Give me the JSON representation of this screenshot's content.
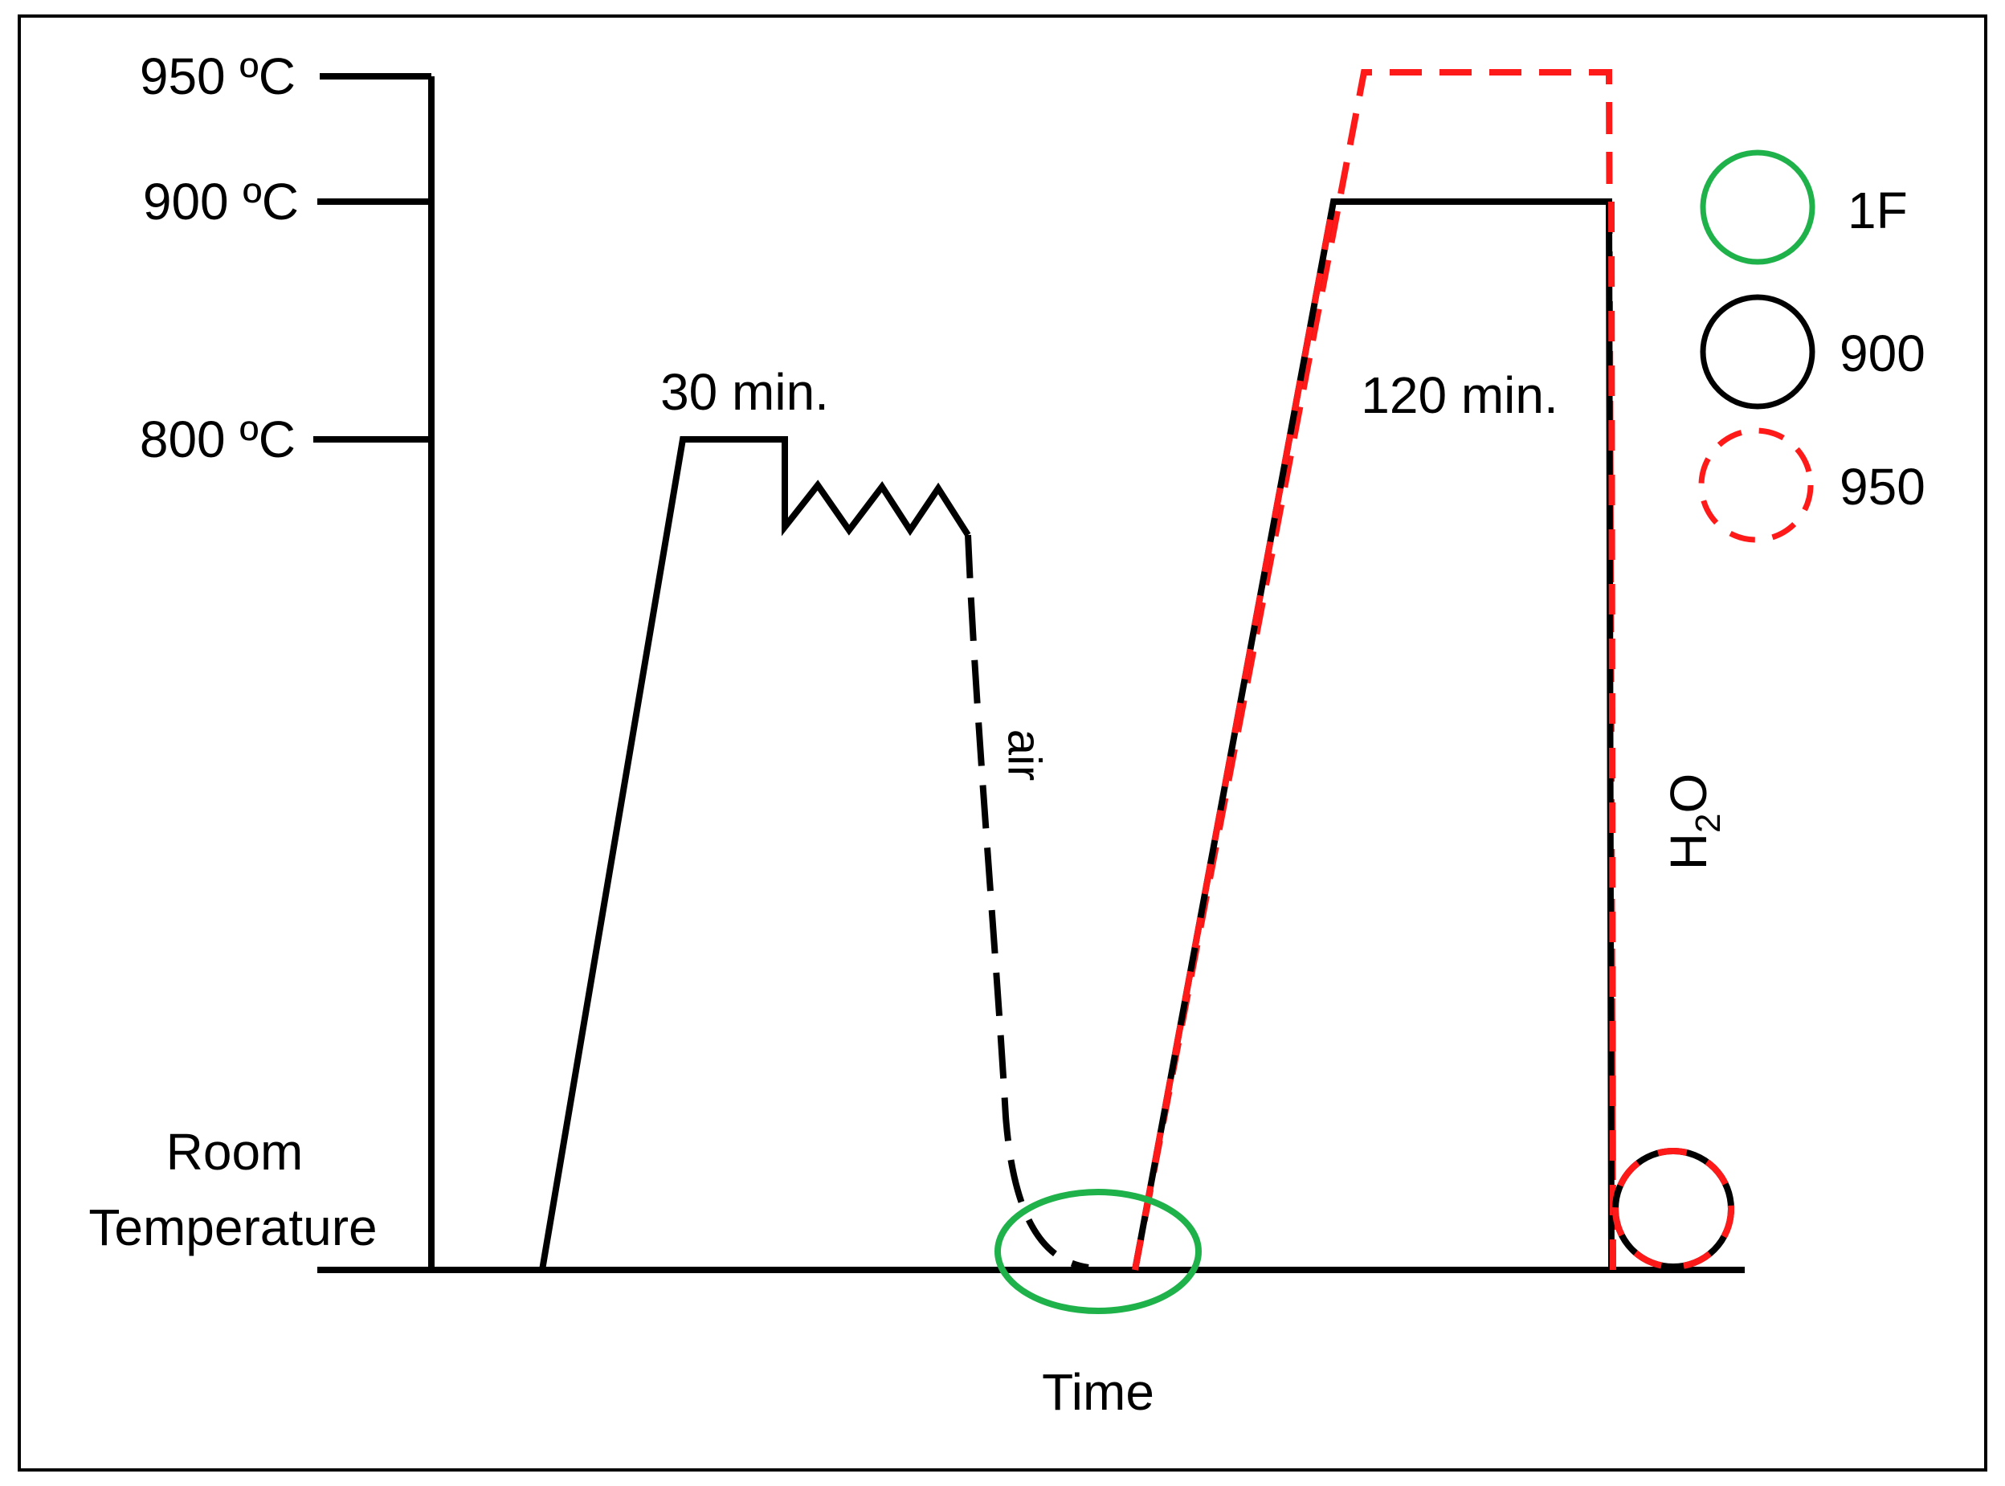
{
  "colors": {
    "black": "#000000",
    "red": "#ff1a1a",
    "green": "#1fb24a",
    "background": "#ffffff"
  },
  "y_axis": {
    "ticks": [
      "950 ºC",
      "900 ºC",
      "800 ºC"
    ],
    "room_temperature": [
      "Room",
      "Temperature"
    ]
  },
  "x_axis": {
    "label": "Time"
  },
  "annotations": {
    "hold_first": "30 min.",
    "hold_second": "120 min.",
    "cooling_air": "air",
    "cooling_water_main": "H",
    "cooling_water_sub": "2",
    "cooling_water_end": "O"
  },
  "legend": [
    {
      "label": "1F",
      "color": "#1fb24a",
      "style": "solid"
    },
    {
      "label": "900",
      "color": "#000000",
      "style": "solid"
    },
    {
      "label": "950",
      "color": "#ff1a1a",
      "style": "dashed"
    }
  ]
}
